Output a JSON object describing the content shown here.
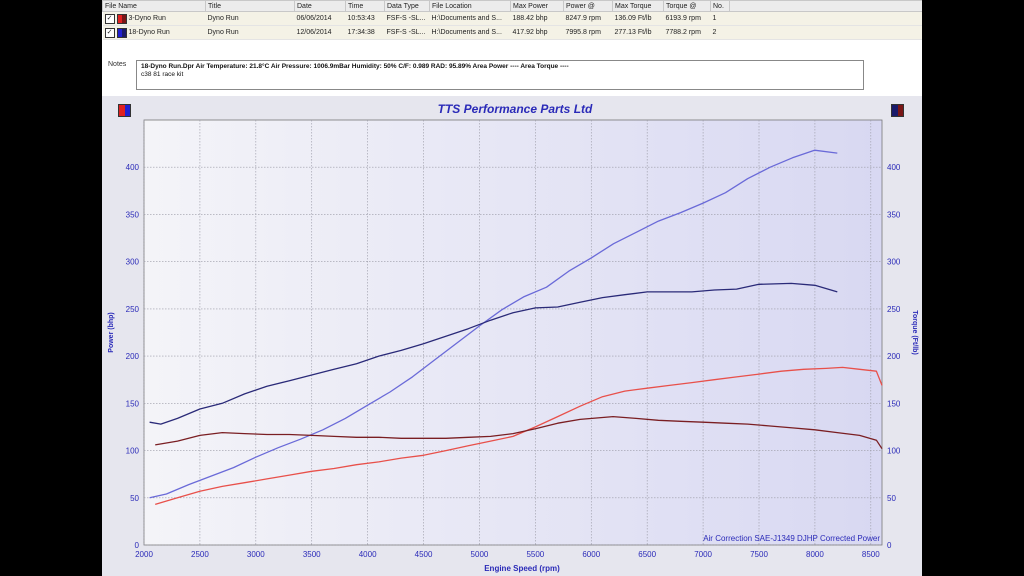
{
  "table": {
    "headers": [
      "File Name",
      "Title",
      "Date",
      "Time",
      "Data Type",
      "File Location",
      "Max Power",
      "Power @",
      "Max Torque",
      "Torque @",
      "No."
    ],
    "rows": [
      {
        "file": "3-Dyno Run",
        "title": "Dyno Run",
        "date": "06/06/2014",
        "time": "10:53:43",
        "type": "FSF-S -SL...",
        "location": "H:\\Documents and S...",
        "max_power": "188.42 bhp",
        "power_at": "8247.9 rpm",
        "max_torque": "136.09 Ft/lb",
        "torque_at": "6193.9 rpm",
        "no": "1",
        "color_a": "#e02020",
        "color_b": "#7a1616"
      },
      {
        "file": "18-Dyno Run",
        "title": "Dyno Run",
        "date": "12/06/2014",
        "time": "17:34:38",
        "type": "FSF-S -SL...",
        "location": "H:\\Documents and S...",
        "max_power": "417.92 bhp",
        "power_at": "7995.8 rpm",
        "max_torque": "277.13 Ft/lb",
        "torque_at": "7788.2 rpm",
        "no": "2",
        "color_a": "#2020d0",
        "color_b": "#1a1a6a"
      }
    ]
  },
  "notes": {
    "label": "Notes",
    "line1": "18-Dyno Run.Dpr   Air Temperature: 21.8°C   Air Pressure: 1006.9mBar   Humidity: 50%   C/F: 0.989   RAD: 95.89%   Area Power ----   Area Torque ----",
    "line2": "c38 81 race kit"
  },
  "colors": {
    "run1_power": "#e8504a",
    "run1_torque": "#7a1e22",
    "run2_power": "#6a6ad8",
    "run2_torque": "#2a2a78",
    "title": "#2a2ab8",
    "axis_text": "#2a2ab8"
  },
  "chart_data": {
    "type": "line",
    "title": "TTS Performance Parts Ltd",
    "xlabel": "Engine Speed (rpm)",
    "ylabel_left": "Power (bhp)",
    "ylabel_right": "Torque (Ft/lb)",
    "xlim": [
      2000,
      8600
    ],
    "ylim": [
      0,
      450
    ],
    "xticks": [
      2000,
      2500,
      3000,
      3500,
      4000,
      4500,
      5000,
      5500,
      6000,
      6500,
      7000,
      7500,
      8000,
      8500
    ],
    "yticks": [
      0,
      50,
      100,
      150,
      200,
      250,
      300,
      350,
      400
    ],
    "grid": true,
    "annotations": [
      "Air Correction SAE-J1349",
      "DJHP Corrected Power"
    ],
    "series": [
      {
        "key": "run2_power",
        "axis": "left",
        "x": [
          2050,
          2200,
          2400,
          2600,
          2800,
          3000,
          3200,
          3400,
          3600,
          3800,
          4000,
          4200,
          4400,
          4600,
          4800,
          5000,
          5200,
          5400,
          5600,
          5800,
          6000,
          6200,
          6400,
          6600,
          6800,
          7000,
          7200,
          7400,
          7600,
          7800,
          7996,
          8200
        ],
        "y": [
          50,
          54,
          64,
          73,
          82,
          93,
          103,
          112,
          122,
          134,
          148,
          162,
          178,
          196,
          214,
          232,
          249,
          263,
          273,
          290,
          304,
          319,
          331,
          343,
          352,
          362,
          373,
          388,
          400,
          410,
          418,
          415
        ]
      },
      {
        "key": "run2_torque",
        "axis": "right",
        "x": [
          2050,
          2150,
          2300,
          2500,
          2700,
          2900,
          3100,
          3300,
          3500,
          3700,
          3900,
          4100,
          4300,
          4500,
          4700,
          4900,
          5100,
          5300,
          5500,
          5700,
          5900,
          6100,
          6300,
          6500,
          6700,
          6900,
          7100,
          7300,
          7500,
          7788,
          8000,
          8200
        ],
        "y": [
          130,
          128,
          134,
          144,
          150,
          160,
          168,
          174,
          180,
          186,
          192,
          200,
          206,
          213,
          221,
          229,
          238,
          246,
          251,
          252,
          257,
          262,
          265,
          268,
          268,
          268,
          270,
          271,
          276,
          277,
          275,
          268
        ]
      },
      {
        "key": "run1_power",
        "axis": "left",
        "x": [
          2100,
          2300,
          2500,
          2700,
          2900,
          3100,
          3300,
          3500,
          3700,
          3900,
          4100,
          4300,
          4500,
          4700,
          4900,
          5100,
          5300,
          5500,
          5700,
          5900,
          6100,
          6300,
          6500,
          6700,
          6900,
          7100,
          7300,
          7500,
          7700,
          7900,
          8100,
          8248,
          8400,
          8550,
          8600
        ],
        "y": [
          43,
          50,
          57,
          62,
          66,
          70,
          74,
          78,
          81,
          85,
          88,
          92,
          95,
          100,
          105,
          110,
          115,
          125,
          136,
          147,
          157,
          163,
          166,
          169,
          172,
          175,
          178,
          181,
          184,
          186,
          187,
          188,
          186,
          184,
          169
        ]
      },
      {
        "key": "run1_torque",
        "axis": "right",
        "x": [
          2100,
          2300,
          2500,
          2700,
          2900,
          3100,
          3300,
          3500,
          3700,
          3900,
          4100,
          4300,
          4500,
          4700,
          4900,
          5100,
          5300,
          5500,
          5700,
          5900,
          6194,
          6400,
          6600,
          6800,
          7000,
          7200,
          7400,
          7600,
          7800,
          8000,
          8200,
          8400,
          8550,
          8600
        ],
        "y": [
          106,
          110,
          116,
          119,
          118,
          117,
          117,
          116,
          115,
          114,
          114,
          113,
          113,
          113,
          114,
          115,
          118,
          123,
          129,
          133,
          136,
          134,
          132,
          131,
          130,
          129,
          128,
          126,
          124,
          122,
          119,
          116,
          111,
          102
        ]
      }
    ]
  }
}
